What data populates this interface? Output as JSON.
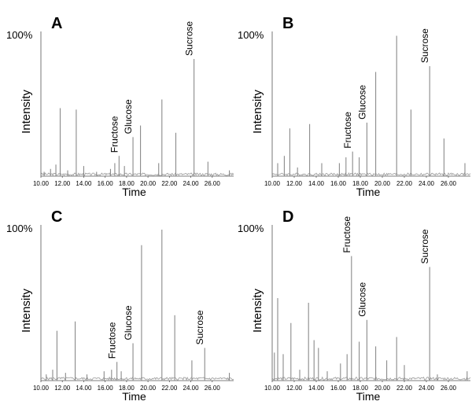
{
  "chart_data": [
    {
      "panel": "A",
      "type": "line",
      "y_max_label": "100%",
      "ylabel": "Intensity",
      "xlabel": "Time",
      "xlim": [
        10.0,
        28.0
      ],
      "ylim": [
        0,
        100
      ],
      "ticks": [
        "10.00",
        "12.00",
        "14.00",
        "16.00",
        "18.00",
        "20.00",
        "22.00",
        "24.00",
        "26.00"
      ],
      "peaks": [
        {
          "x": 10.3,
          "y": 3
        },
        {
          "x": 10.9,
          "y": 5
        },
        {
          "x": 11.4,
          "y": 8
        },
        {
          "x": 11.8,
          "y": 47
        },
        {
          "x": 12.5,
          "y": 4
        },
        {
          "x": 13.3,
          "y": 46
        },
        {
          "x": 14.0,
          "y": 7
        },
        {
          "x": 15.2,
          "y": 3
        },
        {
          "x": 16.5,
          "y": 5
        },
        {
          "x": 16.9,
          "y": 9
        },
        {
          "x": 17.3,
          "y": 14
        },
        {
          "x": 17.8,
          "y": 7
        },
        {
          "x": 18.6,
          "y": 27
        },
        {
          "x": 19.3,
          "y": 35
        },
        {
          "x": 21.0,
          "y": 9
        },
        {
          "x": 21.3,
          "y": 53
        },
        {
          "x": 22.6,
          "y": 30
        },
        {
          "x": 24.3,
          "y": 81
        },
        {
          "x": 25.6,
          "y": 10
        },
        {
          "x": 27.6,
          "y": 4
        }
      ],
      "labels": [
        {
          "text": "Fructose",
          "x": 17.3,
          "y": 14
        },
        {
          "text": "Glucose",
          "x": 18.6,
          "y": 27
        },
        {
          "text": "Sucrose",
          "x": 24.3,
          "y": 81
        }
      ]
    },
    {
      "panel": "B",
      "type": "line",
      "y_max_label": "100%",
      "ylabel": "Intensity",
      "xlabel": "Time",
      "xlim": [
        10.0,
        28.0
      ],
      "ylim": [
        0,
        100
      ],
      "ticks": [
        "10.00",
        "12.00",
        "14.00",
        "16.00",
        "18.00",
        "20.00",
        "22.00",
        "24.00",
        "26.00"
      ],
      "peaks": [
        {
          "x": 10.5,
          "y": 9
        },
        {
          "x": 11.1,
          "y": 14
        },
        {
          "x": 11.6,
          "y": 33
        },
        {
          "x": 12.3,
          "y": 6
        },
        {
          "x": 13.4,
          "y": 36
        },
        {
          "x": 14.5,
          "y": 9
        },
        {
          "x": 16.1,
          "y": 9
        },
        {
          "x": 16.7,
          "y": 13
        },
        {
          "x": 17.3,
          "y": 17
        },
        {
          "x": 17.9,
          "y": 13
        },
        {
          "x": 18.6,
          "y": 37
        },
        {
          "x": 19.4,
          "y": 72
        },
        {
          "x": 21.3,
          "y": 97
        },
        {
          "x": 22.6,
          "y": 46
        },
        {
          "x": 24.3,
          "y": 76
        },
        {
          "x": 25.6,
          "y": 26
        },
        {
          "x": 27.5,
          "y": 9
        }
      ],
      "labels": [
        {
          "text": "Fructose",
          "x": 17.3,
          "y": 17
        },
        {
          "text": "Glucose",
          "x": 18.6,
          "y": 37
        },
        {
          "text": "Sucrose",
          "x": 24.3,
          "y": 76
        }
      ]
    },
    {
      "panel": "C",
      "type": "line",
      "y_max_label": "100%",
      "ylabel": "Intensity",
      "xlabel": "Time",
      "xlim": [
        10.0,
        28.0
      ],
      "ylim": [
        0,
        100
      ],
      "ticks": [
        "10.00",
        "12.00",
        "14.00",
        "16.00",
        "18.00",
        "20.00",
        "22.00",
        "24.00",
        "26.00"
      ],
      "peaks": [
        {
          "x": 10.5,
          "y": 4
        },
        {
          "x": 11.1,
          "y": 7
        },
        {
          "x": 11.5,
          "y": 32
        },
        {
          "x": 12.3,
          "y": 5
        },
        {
          "x": 13.2,
          "y": 38
        },
        {
          "x": 14.3,
          "y": 4
        },
        {
          "x": 15.9,
          "y": 6
        },
        {
          "x": 16.6,
          "y": 7
        },
        {
          "x": 17.1,
          "y": 12
        },
        {
          "x": 17.5,
          "y": 6
        },
        {
          "x": 18.6,
          "y": 24
        },
        {
          "x": 19.4,
          "y": 87
        },
        {
          "x": 21.3,
          "y": 97
        },
        {
          "x": 22.5,
          "y": 42
        },
        {
          "x": 24.1,
          "y": 13
        },
        {
          "x": 25.3,
          "y": 21
        },
        {
          "x": 27.6,
          "y": 5
        }
      ],
      "labels": [
        {
          "text": "Fructose",
          "x": 17.1,
          "y": 12
        },
        {
          "text": "Glucose",
          "x": 18.6,
          "y": 24
        },
        {
          "text": "Sucrose",
          "x": 25.3,
          "y": 21
        }
      ]
    },
    {
      "panel": "D",
      "type": "line",
      "y_max_label": "100%",
      "ylabel": "Intensity",
      "xlabel": "Time",
      "xlim": [
        10.0,
        28.0
      ],
      "ylim": [
        0,
        100
      ],
      "ticks": [
        "10.00",
        "12.00",
        "14.00",
        "16.00",
        "18.00",
        "20.00",
        "22.00",
        "24.00",
        "26.00"
      ],
      "peaks": [
        {
          "x": 10.2,
          "y": 18
        },
        {
          "x": 10.5,
          "y": 53
        },
        {
          "x": 11.0,
          "y": 17
        },
        {
          "x": 11.7,
          "y": 37
        },
        {
          "x": 12.5,
          "y": 7
        },
        {
          "x": 13.3,
          "y": 50
        },
        {
          "x": 13.8,
          "y": 26
        },
        {
          "x": 14.2,
          "y": 21
        },
        {
          "x": 15.0,
          "y": 6
        },
        {
          "x": 16.2,
          "y": 11
        },
        {
          "x": 16.8,
          "y": 17
        },
        {
          "x": 17.2,
          "y": 80
        },
        {
          "x": 17.9,
          "y": 25
        },
        {
          "x": 18.6,
          "y": 39
        },
        {
          "x": 19.4,
          "y": 22
        },
        {
          "x": 20.4,
          "y": 13
        },
        {
          "x": 21.3,
          "y": 28
        },
        {
          "x": 22.0,
          "y": 10
        },
        {
          "x": 24.3,
          "y": 73
        },
        {
          "x": 25.0,
          "y": 4
        },
        {
          "x": 27.7,
          "y": 6
        }
      ],
      "labels": [
        {
          "text": "Fructose",
          "x": 17.2,
          "y": 80
        },
        {
          "text": "Glucose",
          "x": 18.6,
          "y": 39
        },
        {
          "text": "Sucrose",
          "x": 24.3,
          "y": 73
        }
      ]
    }
  ]
}
